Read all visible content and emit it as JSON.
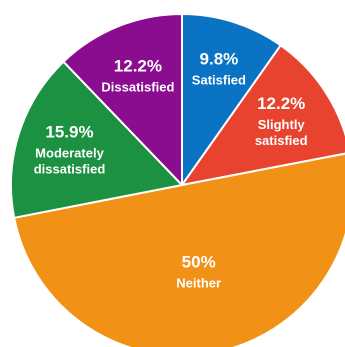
{
  "chart_data": {
    "type": "pie",
    "slices": [
      {
        "label": "Satisfied",
        "display_label": [
          "Satisfied"
        ],
        "value": 9.8,
        "value_label": "9.8%",
        "color": "#0B73C4"
      },
      {
        "label": "Slightly satisfied",
        "display_label": [
          "Slightly",
          "satisfied"
        ],
        "value": 12.2,
        "value_label": "12.2%",
        "color": "#E8432F"
      },
      {
        "label": "Neither",
        "display_label": [
          "Neither"
        ],
        "value": 50,
        "value_label": "50%",
        "color": "#F19116"
      },
      {
        "label": "Moderately dissatisfied",
        "display_label": [
          "Moderately",
          "dissatisfied"
        ],
        "value": 15.9,
        "value_label": "15.9%",
        "color": "#1C9142"
      },
      {
        "label": "Dissatisfied",
        "display_label": [
          "Dissatisfied"
        ],
        "value": 12.2,
        "value_label": "12.2%",
        "color": "#8B0D8F"
      }
    ],
    "start_angle_deg": 0,
    "direction": "clockwise"
  }
}
